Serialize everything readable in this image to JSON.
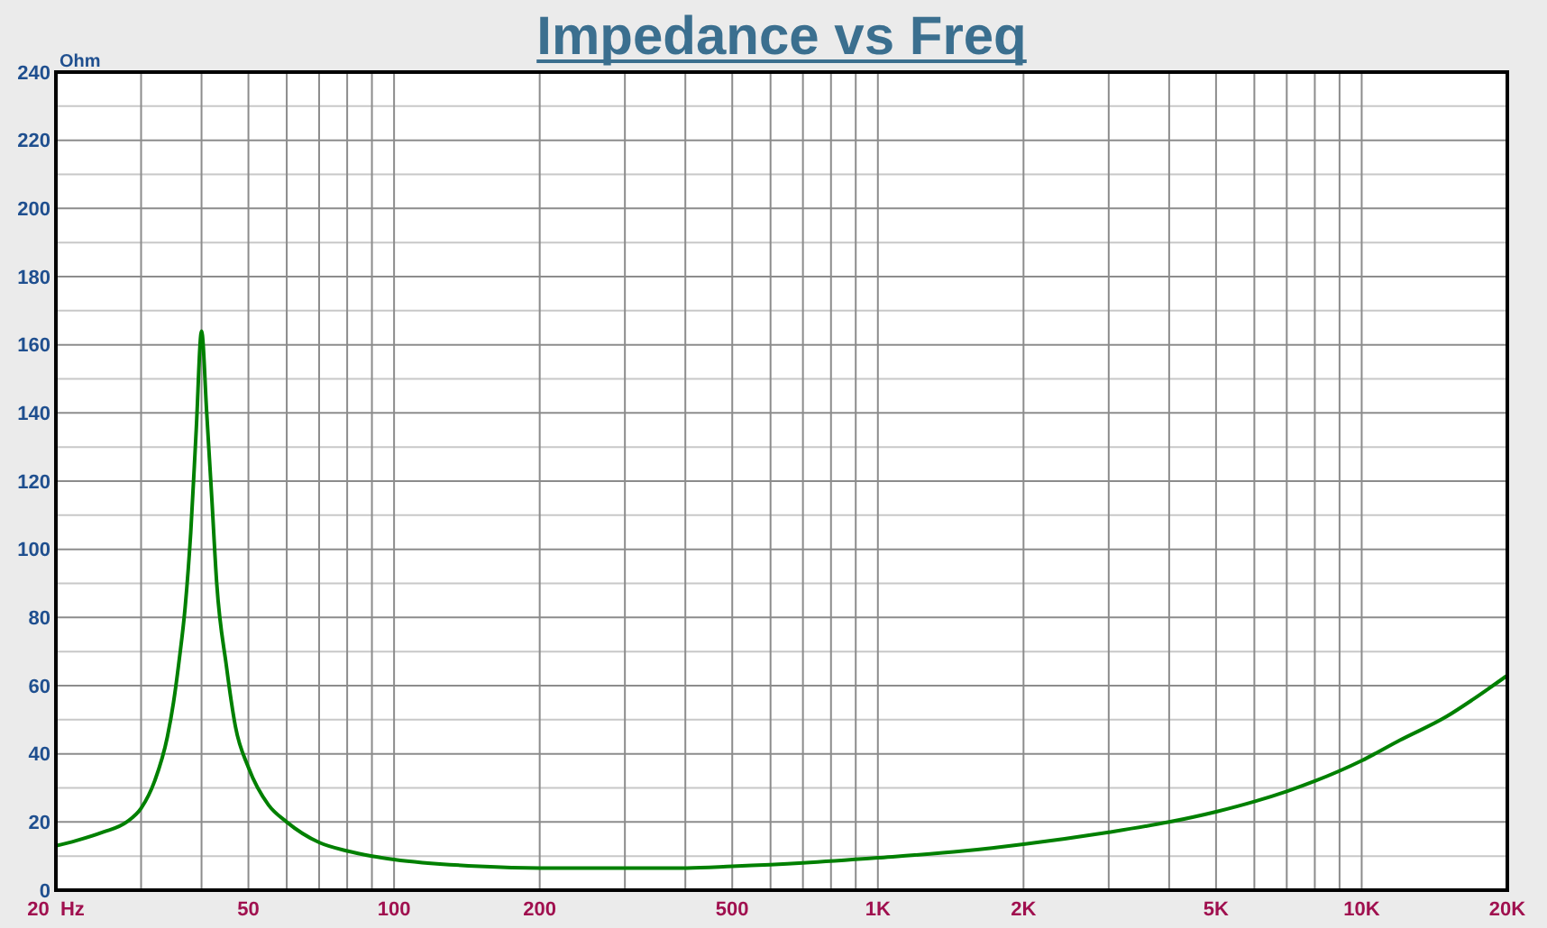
{
  "chart_data": {
    "type": "line",
    "title": "Impedance vs Freq",
    "ylabel": "Ohm",
    "log": "x",
    "grid": true,
    "xlim": [
      20,
      20000
    ],
    "ylim": [
      0,
      240
    ],
    "xticks": [
      {
        "value": 20,
        "label": "20  Hz"
      },
      {
        "value": 30,
        "label": null
      },
      {
        "value": 40,
        "label": null
      },
      50,
      {
        "value": 60,
        "label": null
      },
      {
        "value": 70,
        "label": null
      },
      {
        "value": 80,
        "label": null
      },
      {
        "value": 90,
        "label": null
      },
      100,
      200,
      {
        "value": 300,
        "label": null
      },
      {
        "value": 400,
        "label": null
      },
      500,
      {
        "value": 600,
        "label": null
      },
      {
        "value": 700,
        "label": null
      },
      {
        "value": 800,
        "label": null
      },
      {
        "value": 900,
        "label": null
      },
      {
        "value": 1000,
        "label": "1K"
      },
      {
        "value": 2000,
        "label": "2K"
      },
      {
        "value": 3000,
        "label": null
      },
      {
        "value": 4000,
        "label": null
      },
      {
        "value": 5000,
        "label": "5K"
      },
      {
        "value": 6000,
        "label": null
      },
      {
        "value": 7000,
        "label": null
      },
      {
        "value": 8000,
        "label": null
      },
      {
        "value": 9000,
        "label": null
      },
      {
        "value": 10000,
        "label": "10K"
      },
      {
        "value": 20000,
        "label": "20K"
      }
    ],
    "yticks": [
      0,
      {
        "value": 10,
        "label": null
      },
      20,
      {
        "value": 30,
        "label": null
      },
      40,
      {
        "value": 50,
        "label": null
      },
      60,
      {
        "value": 70,
        "label": null
      },
      80,
      {
        "value": 90,
        "label": null
      },
      100,
      {
        "value": 110,
        "label": null
      },
      120,
      {
        "value": 130,
        "label": null
      },
      140,
      {
        "value": 150,
        "label": null
      },
      160,
      {
        "value": 170,
        "label": null
      },
      180,
      {
        "value": 190,
        "label": null
      },
      200,
      {
        "value": 210,
        "label": null
      },
      220,
      {
        "value": 230,
        "label": null
      },
      240
    ],
    "series": [
      {
        "color": "#008000",
        "x": [
          20,
          22,
          25,
          28,
          30,
          32,
          34,
          35,
          36,
          37,
          38,
          39,
          40,
          41,
          42,
          43,
          45,
          47,
          50,
          55,
          60,
          70,
          80,
          90,
          100,
          150,
          200,
          300,
          400,
          500,
          700,
          1000,
          1500,
          2000,
          3000,
          4000,
          5000,
          6000,
          7000,
          8000,
          10000,
          12000,
          15000,
          17000,
          20000
        ],
        "values": [
          13,
          14.5,
          17,
          20,
          24,
          32,
          45,
          55,
          68,
          83,
          105,
          135,
          164,
          140,
          115,
          90,
          66,
          48,
          36,
          25,
          20,
          14,
          11.5,
          10,
          9,
          7,
          6.5,
          6.5,
          6.5,
          7,
          8,
          9.5,
          11.5,
          13.5,
          17,
          20,
          23,
          26,
          29,
          32,
          38,
          44,
          51,
          56,
          63
        ]
      }
    ]
  }
}
